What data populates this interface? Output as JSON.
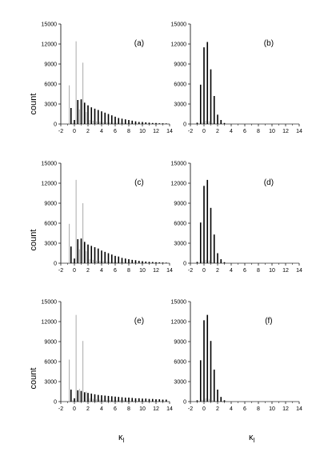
{
  "figure": {
    "ylabel": "count",
    "xlabel_main": "κ",
    "xlabel_sub": "l"
  },
  "chart_data": [
    {
      "panel": "(a)",
      "type": "bar",
      "xlim": [
        -2,
        14
      ],
      "ylim": [
        0,
        15000
      ],
      "xticks": [
        -2,
        0,
        2,
        4,
        6,
        8,
        10,
        12,
        14
      ],
      "yticks": [
        0,
        3000,
        6000,
        9000,
        12000,
        15000
      ],
      "series": [
        {
          "color": "#000000",
          "x": [
            -0.5,
            0,
            0.5,
            1,
            1.5,
            2,
            2.5,
            3,
            3.5,
            4,
            4.5,
            5,
            5.5,
            6,
            6.5,
            7,
            7.5,
            8,
            8.5,
            9,
            9.5,
            10,
            10.5,
            11,
            11.5,
            12,
            12.5,
            13,
            13.5
          ],
          "values": [
            2400,
            600,
            3600,
            3700,
            3200,
            2800,
            2500,
            2300,
            2100,
            1900,
            1700,
            1500,
            1300,
            1100,
            900,
            800,
            700,
            600,
            500,
            400,
            300,
            300,
            250,
            200,
            150,
            150,
            100,
            100,
            80
          ]
        },
        {
          "color": "#aaaaaa",
          "x": [
            -0.75,
            -0.25,
            0.25,
            0.75,
            1.25,
            1.75,
            2.25,
            2.75,
            3.25,
            3.75,
            4.25,
            4.75,
            5.25,
            5.75,
            6.25,
            6.75,
            7.25,
            7.75,
            8.25,
            8.75,
            9.25,
            9.75,
            10.25,
            10.75,
            11.25,
            11.75,
            12.25,
            12.75,
            13.25,
            13.75
          ],
          "values": [
            5800,
            200,
            12400,
            2200,
            9200,
            1800,
            600,
            500,
            400,
            350,
            300,
            280,
            250,
            230,
            200,
            180,
            160,
            140,
            120,
            100,
            90,
            80,
            70,
            60,
            50,
            40,
            30,
            30,
            20,
            20
          ]
        }
      ]
    },
    {
      "panel": "(b)",
      "type": "bar",
      "xlim": [
        -2,
        14
      ],
      "ylim": [
        0,
        15000
      ],
      "xticks": [
        -2,
        0,
        2,
        4,
        6,
        8,
        10,
        12,
        14
      ],
      "yticks": [
        0,
        3000,
        6000,
        9000,
        12000,
        15000
      ],
      "series": [
        {
          "color": "#000000",
          "x": [
            -1,
            -0.5,
            0,
            0.5,
            1,
            1.5,
            2,
            2.5,
            3
          ],
          "values": [
            200,
            5900,
            11500,
            12300,
            8200,
            4200,
            1400,
            600,
            150
          ]
        },
        {
          "color": "#aaaaaa",
          "x": [
            -0.75,
            -0.25,
            0.25,
            0.75,
            1.25,
            1.75,
            2.25,
            2.75
          ],
          "values": [
            100,
            300,
            500,
            400,
            200,
            100,
            50,
            30
          ]
        }
      ]
    },
    {
      "panel": "(c)",
      "type": "bar",
      "xlim": [
        -2,
        14
      ],
      "ylim": [
        0,
        15000
      ],
      "xticks": [
        -2,
        0,
        2,
        4,
        6,
        8,
        10,
        12,
        14
      ],
      "yticks": [
        0,
        3000,
        6000,
        9000,
        12000,
        15000
      ],
      "series": [
        {
          "color": "#000000",
          "x": [
            -0.5,
            0,
            0.5,
            1,
            1.5,
            2,
            2.5,
            3,
            3.5,
            4,
            4.5,
            5,
            5.5,
            6,
            6.5,
            7,
            7.5,
            8,
            8.5,
            9,
            9.5,
            10,
            10.5,
            11,
            11.5,
            12,
            12.5,
            13,
            13.5
          ],
          "values": [
            2500,
            700,
            3600,
            3700,
            3200,
            2800,
            2600,
            2400,
            2200,
            1900,
            1700,
            1500,
            1300,
            1100,
            1000,
            800,
            700,
            600,
            500,
            450,
            350,
            300,
            250,
            200,
            180,
            150,
            120,
            100,
            80
          ]
        },
        {
          "color": "#aaaaaa",
          "x": [
            -0.75,
            -0.25,
            0.25,
            0.75,
            1.25,
            1.75,
            2.25,
            2.75,
            3.25,
            3.75,
            4.25,
            4.75,
            5.25,
            5.75,
            6.25,
            6.75,
            7.25,
            7.75,
            8.25,
            8.75,
            9.25,
            9.75,
            10.25,
            10.75,
            11.25,
            11.75,
            12.25,
            12.75,
            13.25,
            13.75
          ],
          "values": [
            5900,
            200,
            12500,
            2100,
            9000,
            1800,
            600,
            500,
            400,
            350,
            300,
            280,
            250,
            230,
            200,
            180,
            160,
            140,
            120,
            100,
            90,
            80,
            70,
            60,
            50,
            40,
            30,
            30,
            20,
            20
          ]
        }
      ]
    },
    {
      "panel": "(d)",
      "type": "bar",
      "xlim": [
        -2,
        14
      ],
      "ylim": [
        0,
        15000
      ],
      "xticks": [
        -2,
        0,
        2,
        4,
        6,
        8,
        10,
        12,
        14
      ],
      "yticks": [
        0,
        3000,
        6000,
        9000,
        12000,
        15000
      ],
      "series": [
        {
          "color": "#000000",
          "x": [
            -1,
            -0.5,
            0,
            0.5,
            1,
            1.5,
            2,
            2.5,
            3
          ],
          "values": [
            200,
            6100,
            11600,
            12500,
            8300,
            4300,
            1500,
            600,
            150
          ]
        },
        {
          "color": "#aaaaaa",
          "x": [
            -0.75,
            -0.25,
            0.25,
            0.75,
            1.25,
            1.75,
            2.25,
            2.75
          ],
          "values": [
            100,
            300,
            500,
            400,
            200,
            100,
            50,
            30
          ]
        }
      ]
    },
    {
      "panel": "(e)",
      "type": "bar",
      "xlim": [
        -2,
        14
      ],
      "ylim": [
        0,
        15000
      ],
      "xticks": [
        -2,
        0,
        2,
        4,
        6,
        8,
        10,
        12,
        14
      ],
      "yticks": [
        0,
        3000,
        6000,
        9000,
        12000,
        15000
      ],
      "series": [
        {
          "color": "#000000",
          "x": [
            -0.5,
            0,
            0.5,
            1,
            1.5,
            2,
            2.5,
            3,
            3.5,
            4,
            4.5,
            5,
            5.5,
            6,
            6.5,
            7,
            7.5,
            8,
            8.5,
            9,
            9.5,
            10,
            10.5,
            11,
            11.5,
            12,
            12.5,
            13,
            13.5
          ],
          "values": [
            1800,
            500,
            1700,
            1600,
            1400,
            1300,
            1200,
            1100,
            1000,
            950,
            900,
            850,
            800,
            750,
            700,
            650,
            600,
            600,
            550,
            500,
            500,
            450,
            450,
            400,
            400,
            350,
            350,
            300,
            300
          ]
        },
        {
          "color": "#aaaaaa",
          "x": [
            -0.75,
            -0.25,
            0.25,
            0.75,
            1.25,
            1.75,
            2.25,
            2.75,
            3.25,
            3.75,
            4.25,
            4.75,
            5.25,
            5.75,
            6.25,
            6.75,
            7.25,
            7.75,
            8.25,
            8.75,
            9.25,
            9.75,
            10.25,
            10.75,
            11.25,
            11.75,
            12.25,
            12.75,
            13.25,
            13.75
          ],
          "values": [
            6300,
            200,
            13000,
            1900,
            9100,
            1500,
            500,
            400,
            350,
            300,
            280,
            260,
            240,
            220,
            200,
            190,
            180,
            170,
            160,
            150,
            140,
            130,
            120,
            110,
            100,
            90,
            80,
            70,
            60,
            50
          ]
        }
      ]
    },
    {
      "panel": "(f)",
      "type": "bar",
      "xlim": [
        -2,
        14
      ],
      "ylim": [
        0,
        15000
      ],
      "xticks": [
        -2,
        0,
        2,
        4,
        6,
        8,
        10,
        12,
        14
      ],
      "yticks": [
        0,
        3000,
        6000,
        9000,
        12000,
        15000
      ],
      "series": [
        {
          "color": "#000000",
          "x": [
            -1,
            -0.5,
            0,
            0.5,
            1,
            1.5,
            2,
            2.5,
            3
          ],
          "values": [
            200,
            6200,
            12200,
            13000,
            9100,
            4800,
            1800,
            700,
            200
          ]
        },
        {
          "color": "#aaaaaa",
          "x": [
            -0.75,
            -0.25,
            0.25,
            0.75,
            1.25,
            1.75,
            2.25,
            2.75
          ],
          "values": [
            100,
            300,
            500,
            400,
            200,
            100,
            50,
            30
          ]
        }
      ]
    }
  ]
}
